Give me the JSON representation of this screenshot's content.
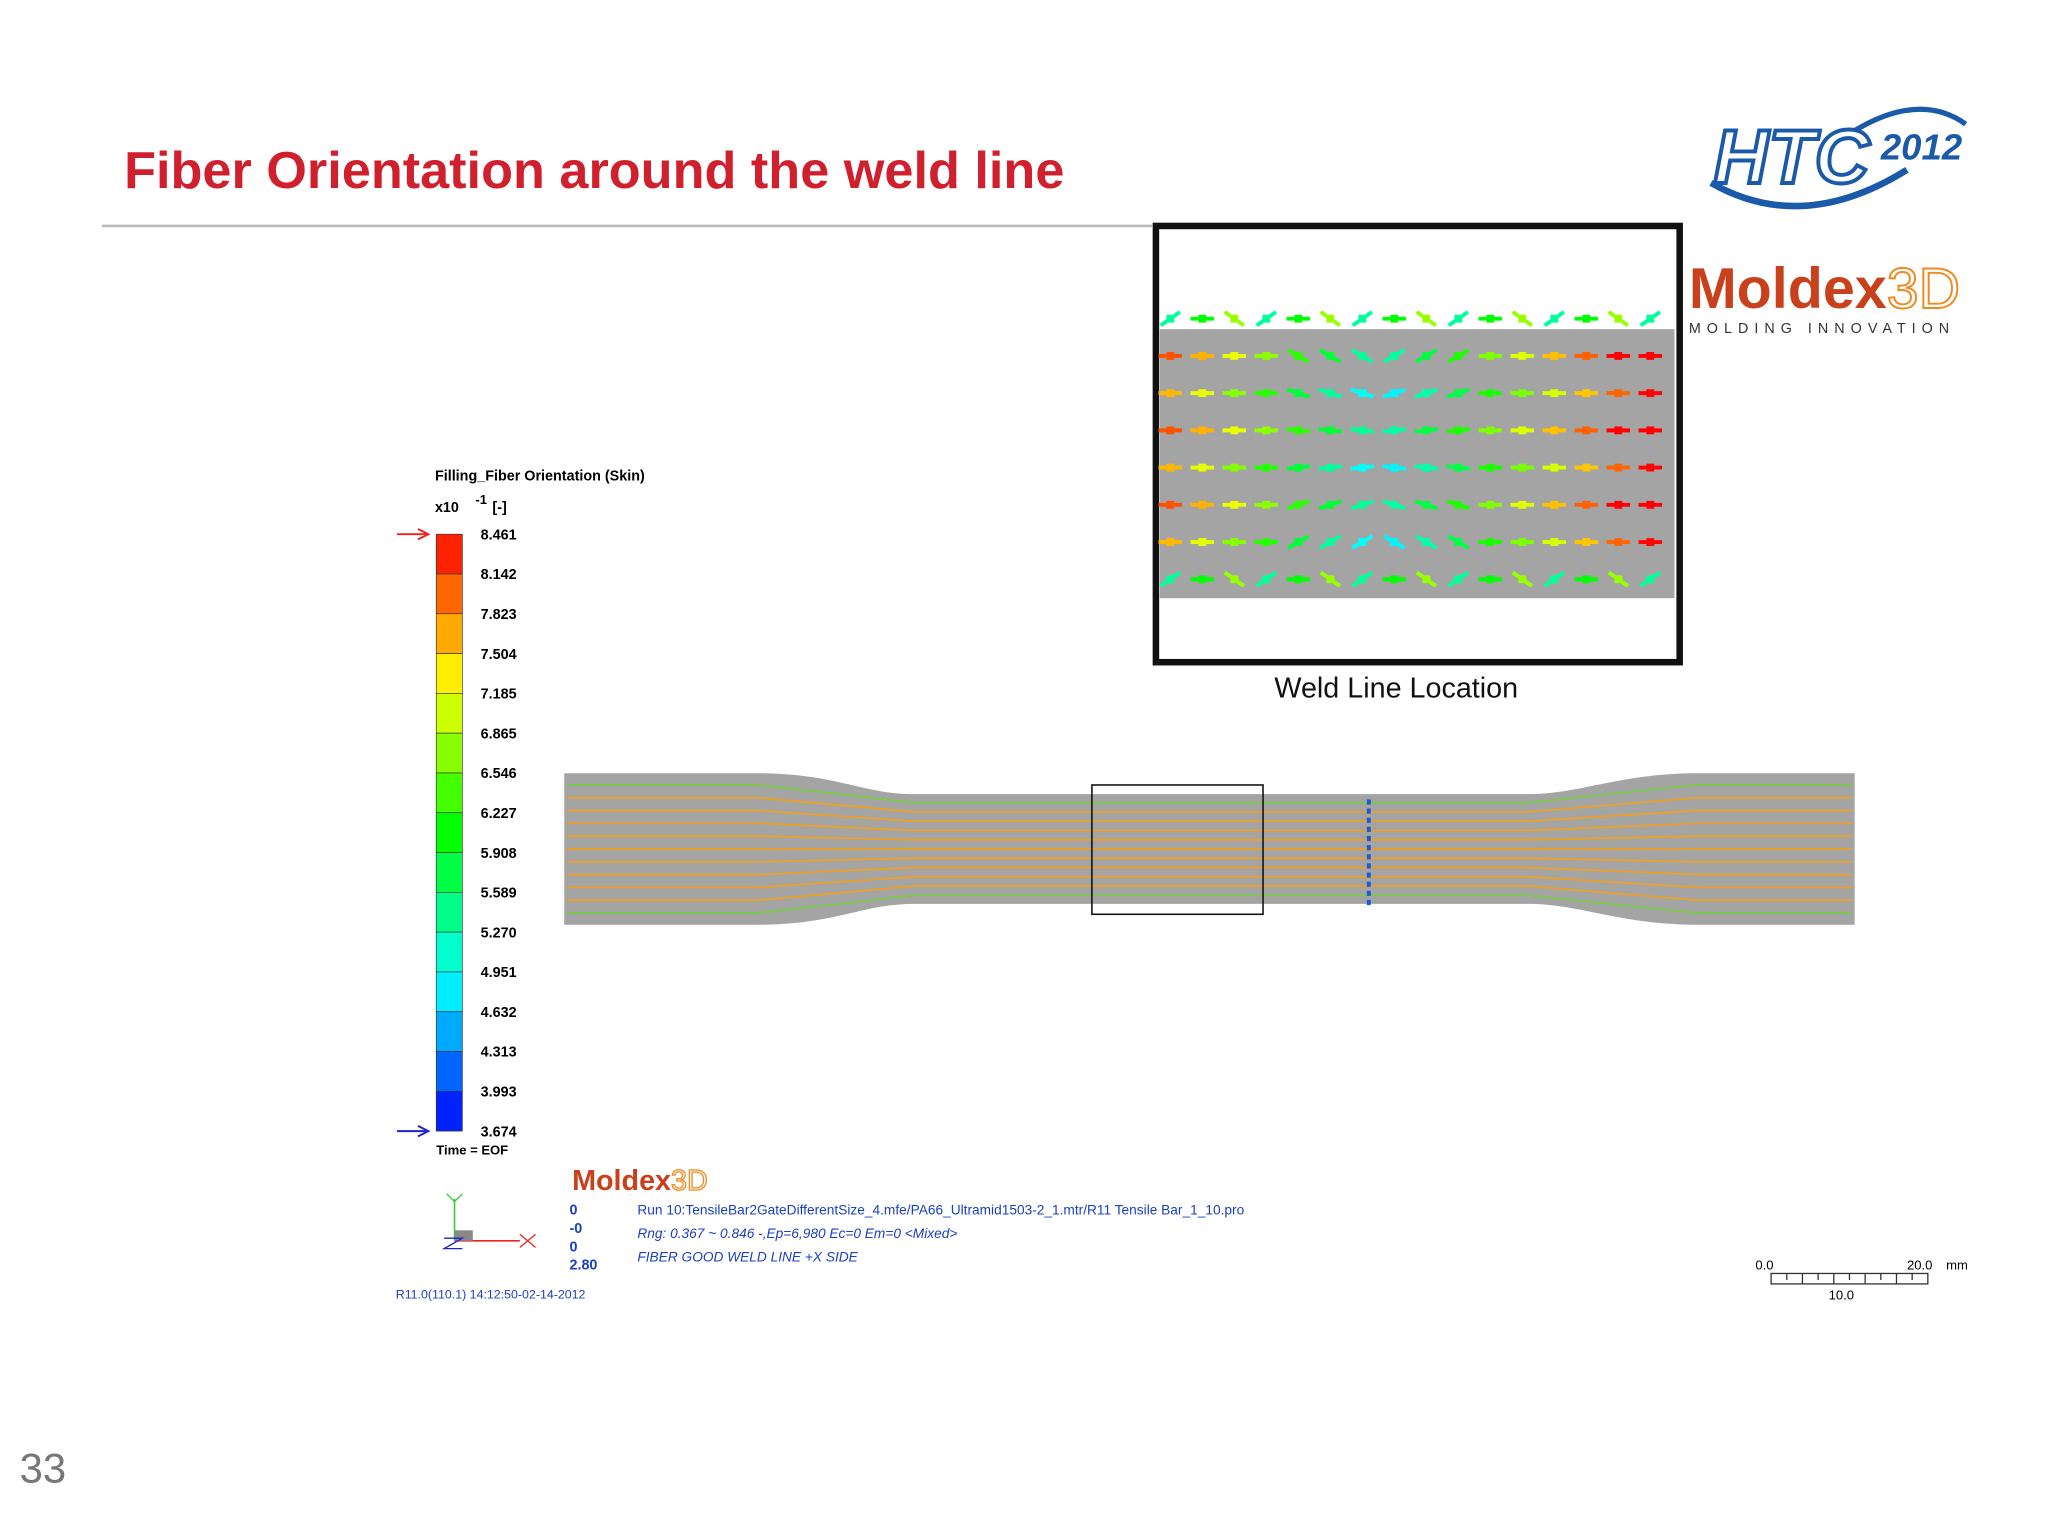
{
  "header": {
    "title": "Fiber Orientation around the weld line"
  },
  "logos": {
    "htc": "HTC",
    "htc_year": "2012",
    "moldex_brand": "Moldex",
    "moldex_suffix": "3D",
    "moldex_tagline": "MOLDING INNOVATION"
  },
  "inset": {
    "caption": "Weld Line Location"
  },
  "legend": {
    "title": "Filling_Fiber Orientation (Skin)",
    "multiplier": "x10",
    "exponent": "-1",
    "unit": "[-]",
    "labels": [
      "8.461",
      "8.142",
      "7.823",
      "7.504",
      "7.185",
      "6.865",
      "6.546",
      "6.227",
      "5.908",
      "5.589",
      "5.270",
      "4.951",
      "4.632",
      "4.313",
      "3.993",
      "3.674"
    ],
    "time": "Time = EOF"
  },
  "info": {
    "brand": "Moldex",
    "brand_suffix": "3D",
    "coords": [
      "0",
      "-0",
      "0",
      "2.80"
    ],
    "lines": [
      "Run 10:TensileBar2GateDifferentSize_4.mfe/PA66_Ultramid1503-2_1.mtr/R11 Tensile Bar_1_10.pro",
      "Rng: 0.367 ~ 0.846 -,Ep=6,980 Ec=0 Em=0 <Mixed>",
      "FIBER GOOD WELD LINE +X SIDE"
    ],
    "version": "R11.0(110.1) 14:12:50-02-14-2012"
  },
  "scale_bar": {
    "start": "0.0",
    "end": "20.0",
    "unit": "mm",
    "mid": "10.0"
  },
  "page_number": "33"
}
